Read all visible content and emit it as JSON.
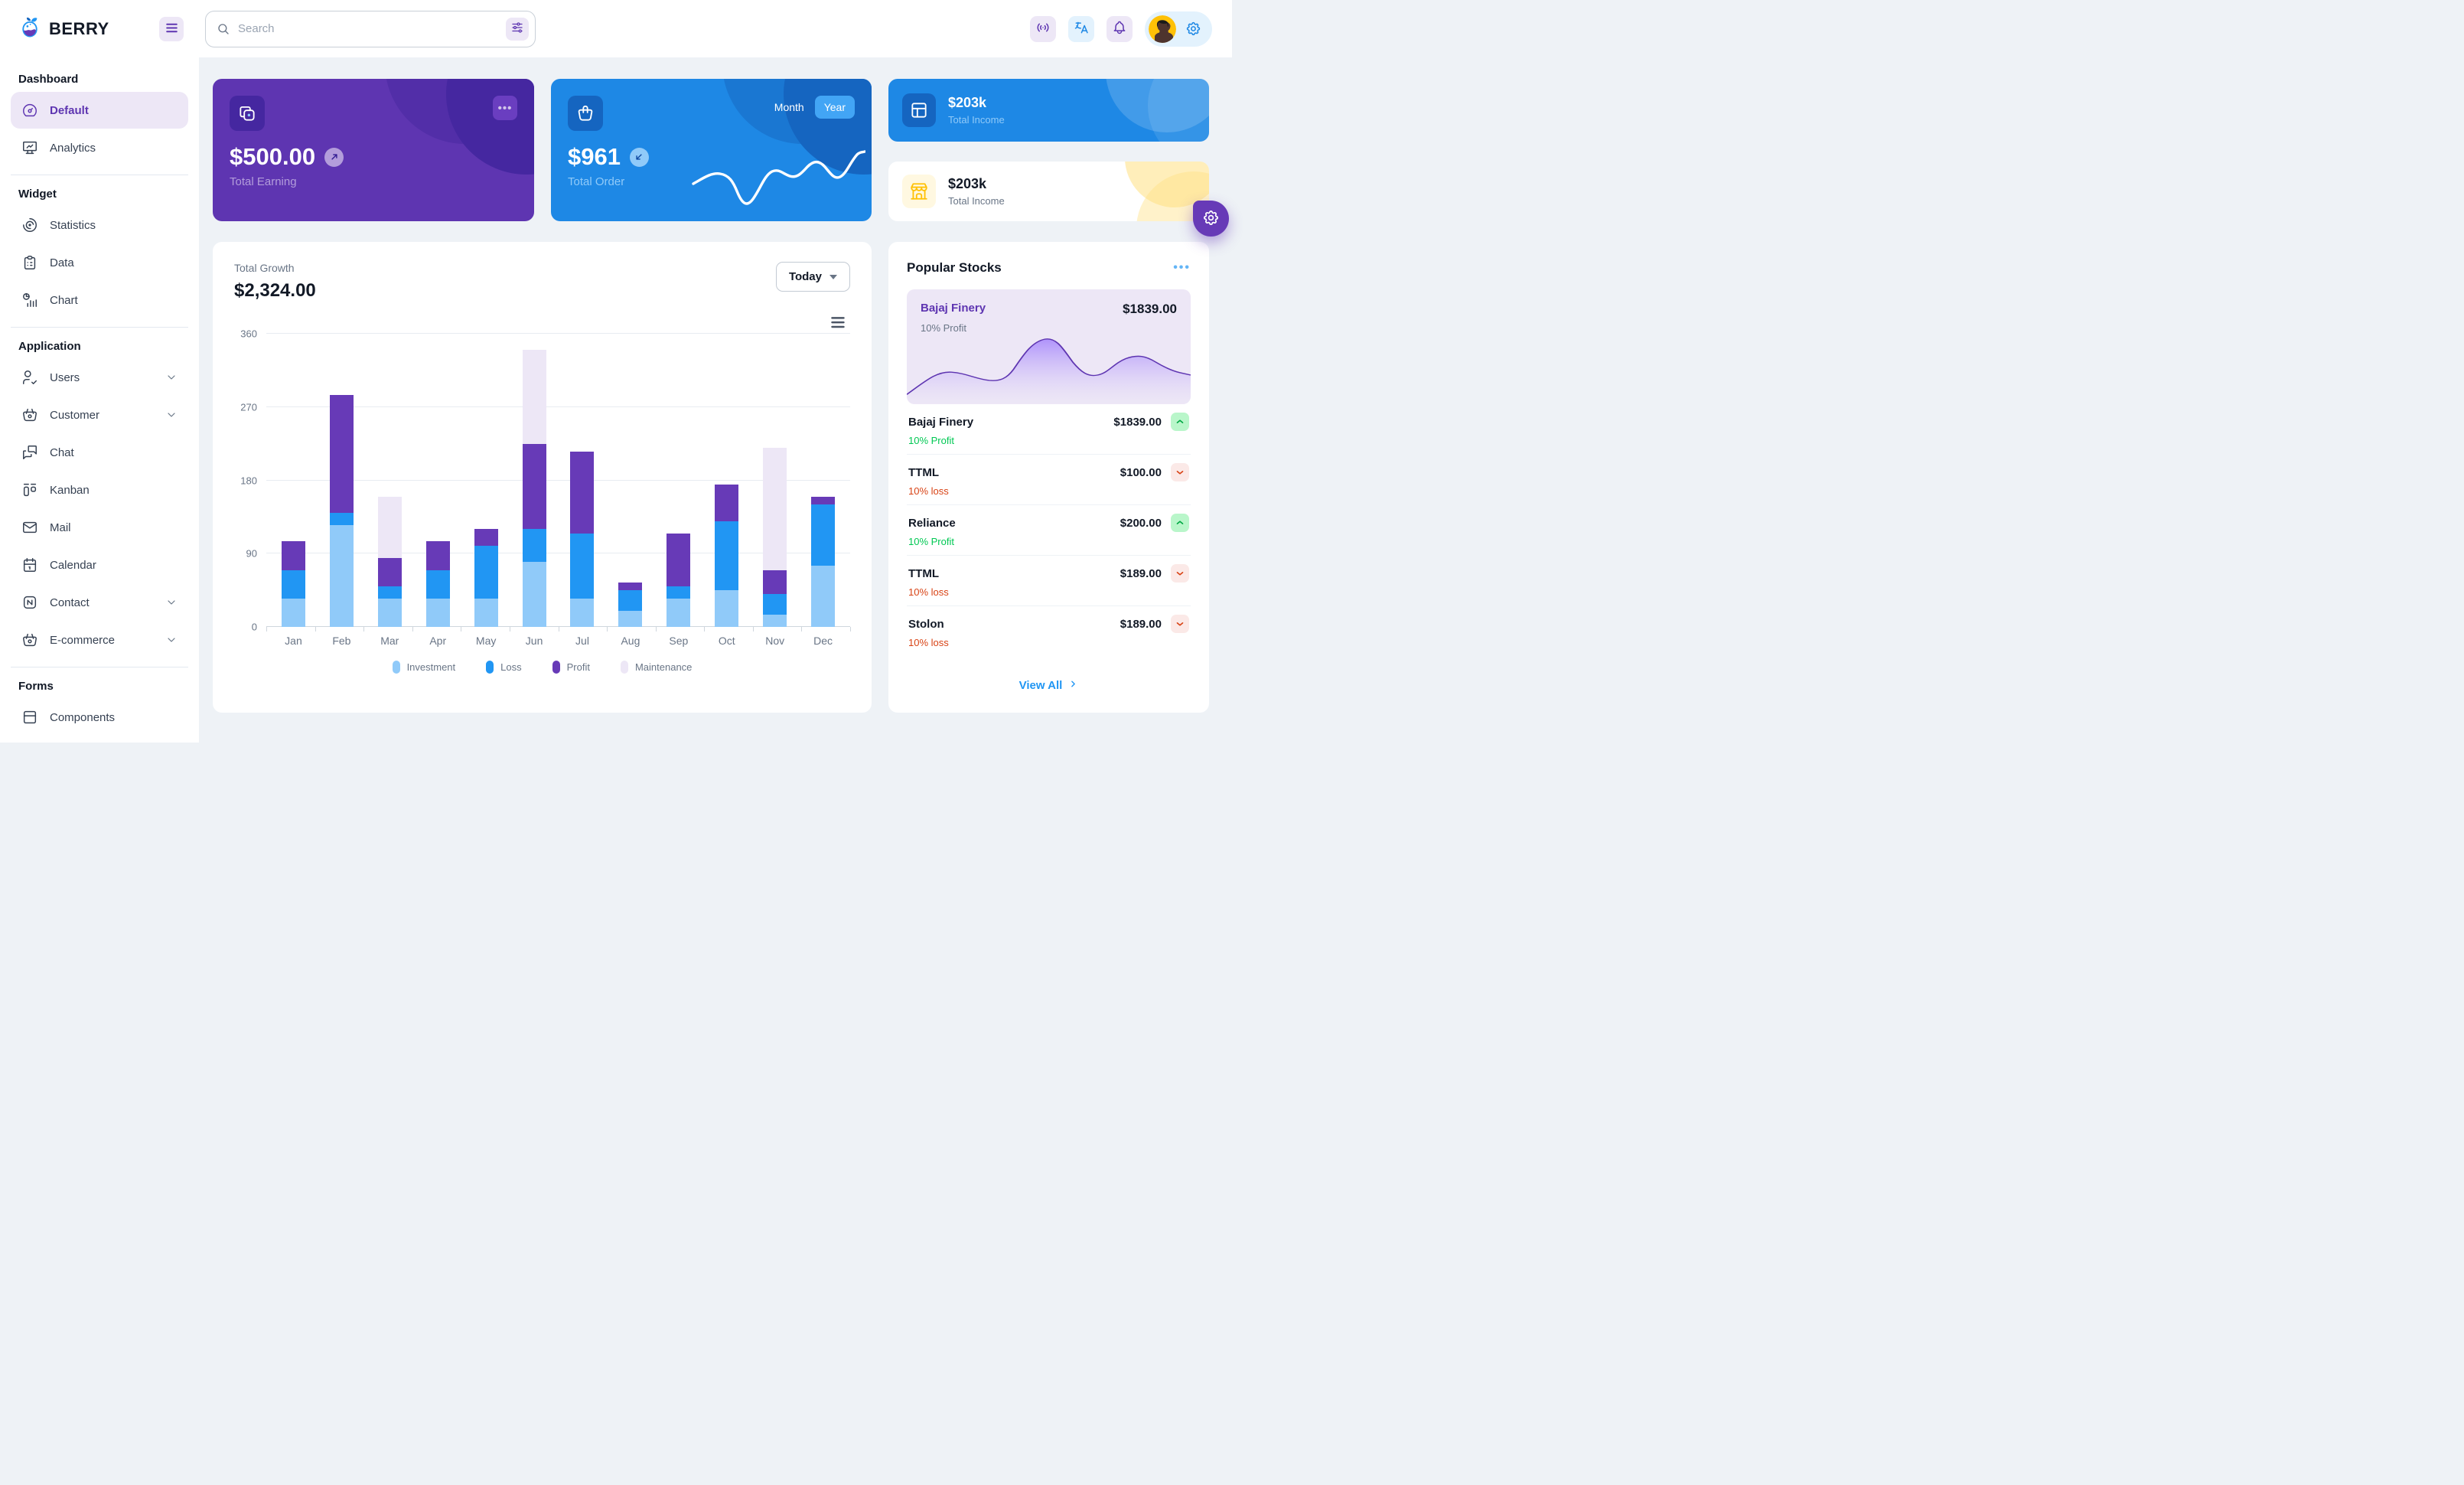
{
  "brand": {
    "name": "BERRY"
  },
  "topbar": {
    "search": {
      "placeholder": "Search"
    },
    "icons": [
      "broadcast",
      "language",
      "bell"
    ],
    "profile": {
      "avatar": "man-profile-photo",
      "settings_icon": "gear"
    }
  },
  "sidebar": {
    "sections": [
      {
        "title": "Dashboard",
        "items": [
          {
            "label": "Default",
            "icon": "gauge",
            "active": true
          },
          {
            "label": "Analytics",
            "icon": "device-analytics"
          }
        ]
      },
      {
        "title": "Widget",
        "items": [
          {
            "label": "Statistics",
            "icon": "chart-arcs"
          },
          {
            "label": "Data",
            "icon": "clipboard"
          },
          {
            "label": "Chart",
            "icon": "chart-infographic"
          }
        ]
      },
      {
        "title": "Application",
        "items": [
          {
            "label": "Users",
            "icon": "user-check",
            "expandable": true
          },
          {
            "label": "Customer",
            "icon": "basket",
            "expandable": true
          },
          {
            "label": "Chat",
            "icon": "messages"
          },
          {
            "label": "Kanban",
            "icon": "kanban"
          },
          {
            "label": "Mail",
            "icon": "mail"
          },
          {
            "label": "Calendar",
            "icon": "calendar"
          },
          {
            "label": "Contact",
            "icon": "nfc",
            "expandable": true
          },
          {
            "label": "E-commerce",
            "icon": "basket",
            "expandable": true
          }
        ]
      },
      {
        "title": "Forms",
        "items": [
          {
            "label": "Components",
            "icon": "box"
          }
        ]
      }
    ]
  },
  "cards": {
    "earning": {
      "value": "$500.00",
      "label": "Total Earning"
    },
    "order": {
      "value": "$961",
      "label": "Total Order",
      "toggle": {
        "month": "Month",
        "year": "Year",
        "active": "Year"
      }
    },
    "income_primary": {
      "value": "$203k",
      "label": "Total Income"
    },
    "income_warning": {
      "value": "$203k",
      "label": "Total Income"
    }
  },
  "growth": {
    "label": "Total Growth",
    "value": "$2,324.00",
    "period_selector": "Today"
  },
  "chart_data": {
    "type": "bar",
    "stacked": true,
    "title": "Total Growth",
    "categories": [
      "Jan",
      "Feb",
      "Mar",
      "Apr",
      "May",
      "Jun",
      "Jul",
      "Aug",
      "Sep",
      "Oct",
      "Nov",
      "Dec"
    ],
    "series": [
      {
        "name": "Investment",
        "color": "#90caf9",
        "values": [
          35,
          125,
          35,
          35,
          35,
          80,
          35,
          20,
          35,
          45,
          15,
          75
        ]
      },
      {
        "name": "Loss",
        "color": "#2196f3",
        "values": [
          35,
          15,
          15,
          35,
          65,
          40,
          80,
          25,
          15,
          85,
          25,
          75
        ]
      },
      {
        "name": "Profit",
        "color": "#673ab7",
        "values": [
          35,
          145,
          35,
          35,
          20,
          105,
          100,
          10,
          65,
          45,
          30,
          10
        ]
      },
      {
        "name": "Maintenance",
        "color": "#ede7f6",
        "values": [
          0,
          0,
          75,
          0,
          0,
          115,
          0,
          0,
          0,
          0,
          150,
          0
        ]
      }
    ],
    "ylim": [
      0,
      360
    ],
    "yticks": [
      0,
      90,
      180,
      270,
      360
    ],
    "grid": true,
    "legend_position": "bottom"
  },
  "stocks": {
    "title": "Popular Stocks",
    "highlight": {
      "name": "Bajaj Finery",
      "price": "$1839.00",
      "change": "10% Profit"
    },
    "rows": [
      {
        "name": "Bajaj Finery",
        "price": "$1839.00",
        "change": "10% Profit",
        "direction": "up"
      },
      {
        "name": "TTML",
        "price": "$100.00",
        "change": "10% loss",
        "direction": "down"
      },
      {
        "name": "Reliance",
        "price": "$200.00",
        "change": "10% Profit",
        "direction": "up"
      },
      {
        "name": "TTML",
        "price": "$189.00",
        "change": "10% loss",
        "direction": "down"
      },
      {
        "name": "Stolon",
        "price": "$189.00",
        "change": "10% loss",
        "direction": "down"
      }
    ],
    "view_all": "View All"
  },
  "colors": {
    "page_bg": "#eef2f6",
    "accent_purple": "#5e35b1",
    "purple_light": "#ede7f6",
    "accent_blue": "#1e88e5",
    "blue_light": "#e3f2fd",
    "dark_text": "#121926",
    "muted_text": "#697586",
    "success": "#00c853",
    "success_light": "#b9f6ca",
    "danger": "#d84315",
    "danger_light": "#fbe9e7",
    "warning": "#ffc107",
    "warning_light": "#fff8e1"
  }
}
